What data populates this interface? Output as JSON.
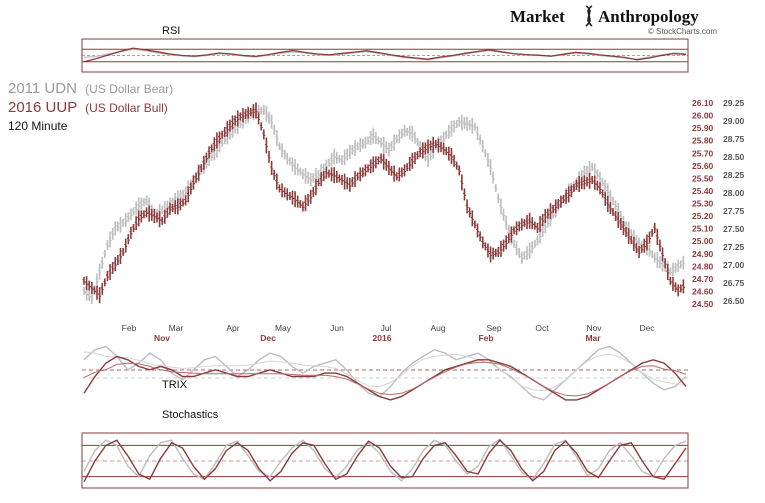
{
  "brand": {
    "name_left": "Market",
    "name_right": "Anthropology",
    "credit": "© StockCharts.com",
    "logo_icon": "dna-helix-icon"
  },
  "colors": {
    "udn": "#bdbdbd",
    "uup": "#8b3a3a",
    "frame": "#8b3a3a",
    "axis_text": "#444444"
  },
  "legend": {
    "udn_label": "2011 UDN",
    "udn_sub": "(US Dollar Bear)",
    "uup_label": "2016 UUP",
    "uup_sub": "(US Dollar Bull)",
    "timeframe": "120 Minute"
  },
  "chart_data": [
    {
      "type": "line",
      "panel": "rsi",
      "title": "RSI",
      "ylim": [
        0,
        100
      ],
      "levels": [
        30,
        50,
        70
      ],
      "series": [
        {
          "name": "2011 UDN",
          "values": [
            44,
            47,
            55,
            63,
            70,
            66,
            58,
            52,
            49,
            46,
            50,
            56,
            53,
            48,
            45,
            51,
            57,
            62,
            58,
            52,
            50,
            54,
            59,
            63,
            57,
            50,
            44,
            40,
            36,
            42,
            48,
            55,
            61,
            66,
            60,
            55,
            52,
            50,
            47,
            52,
            58,
            55,
            50,
            46,
            42,
            38,
            45,
            52,
            58,
            56
          ]
        },
        {
          "name": "2016 UUP",
          "values": [
            30,
            40,
            52,
            64,
            74,
            68,
            62,
            55,
            50,
            48,
            52,
            58,
            55,
            50,
            47,
            53,
            60,
            66,
            60,
            55,
            52,
            57,
            61,
            65,
            59,
            52,
            46,
            42,
            38,
            45,
            50,
            57,
            63,
            68,
            62,
            56,
            53,
            51,
            48,
            54,
            60,
            57,
            52,
            48,
            44,
            36,
            42,
            50,
            56,
            54
          ]
        }
      ]
    },
    {
      "type": "line",
      "panel": "price",
      "xlabel": "",
      "ylabel": "",
      "x_top": [
        "Feb",
        "Mar",
        "Apr",
        "May",
        "Jun",
        "Jul",
        "Aug",
        "Sep",
        "Oct",
        "Nov",
        "Dec"
      ],
      "x_bottom": [
        "Nov",
        "Dec",
        "2016",
        "Feb",
        "Mar"
      ],
      "right_axis_uup": {
        "ticks": [
          "26.10",
          "26.00",
          "25.90",
          "25.80",
          "25.70",
          "25.60",
          "25.50",
          "25.40",
          "25.30",
          "25.20",
          "25.10",
          "25.00",
          "24.90",
          "24.80",
          "24.70",
          "24.60",
          "24.50"
        ],
        "ylim": [
          24.42,
          26.22
        ]
      },
      "right_axis_udn": {
        "ticks": [
          "29.25",
          "29.00",
          "28.75",
          "28.50",
          "28.25",
          "28.00",
          "27.75",
          "27.50",
          "27.25",
          "27.00",
          "26.75",
          "26.50"
        ],
        "ylim": [
          26.32,
          29.42
        ]
      },
      "series": [
        {
          "name": "2011 UDN",
          "axis": "udn",
          "values": [
            26.62,
            26.52,
            26.9,
            27.28,
            27.52,
            27.6,
            27.72,
            27.85,
            27.92,
            27.7,
            27.78,
            27.88,
            27.95,
            28.05,
            28.18,
            28.35,
            28.5,
            28.65,
            28.8,
            28.92,
            29.02,
            29.12,
            29.2,
            29.22,
            29.05,
            28.7,
            28.52,
            28.4,
            28.3,
            28.22,
            28.3,
            28.42,
            28.55,
            28.5,
            28.62,
            28.7,
            28.75,
            28.85,
            28.75,
            28.65,
            28.8,
            28.92,
            28.88,
            28.7,
            28.5,
            28.7,
            28.82,
            28.95,
            29.05,
            29.02,
            28.98,
            28.7,
            28.4,
            27.95,
            27.6,
            27.3,
            27.1,
            27.2,
            27.35,
            27.55,
            27.72,
            27.9,
            28.05,
            28.18,
            28.32,
            28.4,
            28.25,
            28.05,
            27.85,
            27.6,
            27.45,
            27.3,
            27.25,
            27.1,
            27.0,
            26.9,
            26.98,
            27.05
          ]
        },
        {
          "name": "2016 UUP",
          "axis": "uup",
          "values": [
            24.68,
            24.62,
            24.56,
            24.72,
            24.82,
            24.92,
            25.08,
            25.2,
            25.25,
            25.22,
            25.18,
            25.28,
            25.3,
            25.35,
            25.5,
            25.62,
            25.75,
            25.85,
            25.92,
            26.0,
            26.05,
            26.08,
            26.1,
            25.9,
            25.62,
            25.45,
            25.4,
            25.36,
            25.3,
            25.38,
            25.5,
            25.58,
            25.56,
            25.52,
            25.48,
            25.55,
            25.6,
            25.65,
            25.7,
            25.62,
            25.55,
            25.6,
            25.68,
            25.75,
            25.8,
            25.82,
            25.78,
            25.72,
            25.6,
            25.3,
            25.15,
            25.0,
            24.9,
            24.92,
            25.0,
            25.1,
            25.15,
            25.18,
            25.12,
            25.22,
            25.28,
            25.34,
            25.4,
            25.48,
            25.5,
            25.52,
            25.45,
            25.32,
            25.22,
            25.12,
            25.02,
            24.92,
            25.0,
            25.12,
            24.9,
            24.68,
            24.6,
            24.65
          ]
        }
      ]
    },
    {
      "type": "line",
      "panel": "trix",
      "title": "TRIX",
      "ylim": [
        -1,
        1
      ],
      "series": [
        {
          "name": "2011 UDN",
          "values": [
            0.5,
            0.8,
            0.9,
            0.6,
            0.2,
            0.4,
            0.7,
            0.5,
            0.1,
            -0.1,
            0.2,
            0.5,
            0.6,
            0.3,
            0.0,
            0.2,
            0.5,
            0.7,
            0.6,
            0.3,
            0.1,
            0.3,
            0.4,
            0.5,
            0.2,
            -0.2,
            -0.5,
            -0.6,
            -0.3,
            0.1,
            0.4,
            0.6,
            0.8,
            0.7,
            0.5,
            0.6,
            0.7,
            0.5,
            0.2,
            0.0,
            -0.3,
            -0.6,
            -0.7,
            -0.4,
            -0.1,
            0.2,
            0.5,
            0.8,
            0.9,
            0.7,
            0.4,
            0.1,
            -0.2,
            -0.4,
            -0.3,
            0.0
          ]
        },
        {
          "name": "2016 UUP",
          "values": [
            -0.5,
            0.0,
            0.4,
            0.6,
            0.5,
            0.3,
            0.2,
            0.3,
            0.2,
            0.0,
            0.0,
            0.1,
            0.2,
            0.1,
            0.0,
            0.0,
            0.1,
            0.2,
            0.1,
            0.0,
            0.0,
            0.0,
            0.1,
            0.1,
            0.0,
            -0.2,
            -0.4,
            -0.6,
            -0.7,
            -0.6,
            -0.4,
            -0.2,
            0.0,
            0.2,
            0.3,
            0.4,
            0.5,
            0.5,
            0.4,
            0.3,
            0.1,
            -0.1,
            -0.3,
            -0.5,
            -0.7,
            -0.7,
            -0.6,
            -0.4,
            -0.2,
            0.0,
            0.2,
            0.4,
            0.5,
            0.4,
            0.1,
            -0.3
          ]
        }
      ]
    },
    {
      "type": "line",
      "panel": "stochastics",
      "title": "Stochastics",
      "ylim": [
        0,
        100
      ],
      "levels": [
        20,
        50,
        80
      ],
      "series": [
        {
          "name": "2011 UDN",
          "values": [
            30,
            70,
            90,
            80,
            40,
            20,
            60,
            85,
            90,
            55,
            25,
            15,
            45,
            80,
            88,
            60,
            30,
            20,
            50,
            75,
            90,
            70,
            35,
            18,
            40,
            72,
            85,
            65,
            30,
            12,
            35,
            70,
            90,
            80,
            50,
            25,
            40,
            78,
            92,
            60,
            28,
            15,
            45,
            82,
            90,
            58,
            22,
            35,
            70,
            85,
            60,
            30,
            20,
            55,
            80,
            88
          ]
        },
        {
          "name": "2016 UUP",
          "values": [
            10,
            50,
            80,
            90,
            60,
            25,
            15,
            55,
            85,
            75,
            40,
            15,
            35,
            70,
            85,
            70,
            35,
            12,
            30,
            65,
            85,
            80,
            45,
            15,
            25,
            60,
            88,
            75,
            40,
            18,
            20,
            55,
            80,
            85,
            60,
            30,
            25,
            65,
            90,
            70,
            35,
            12,
            30,
            70,
            88,
            65,
            30,
            18,
            50,
            80,
            85,
            50,
            20,
            15,
            45,
            75
          ]
        }
      ]
    }
  ]
}
